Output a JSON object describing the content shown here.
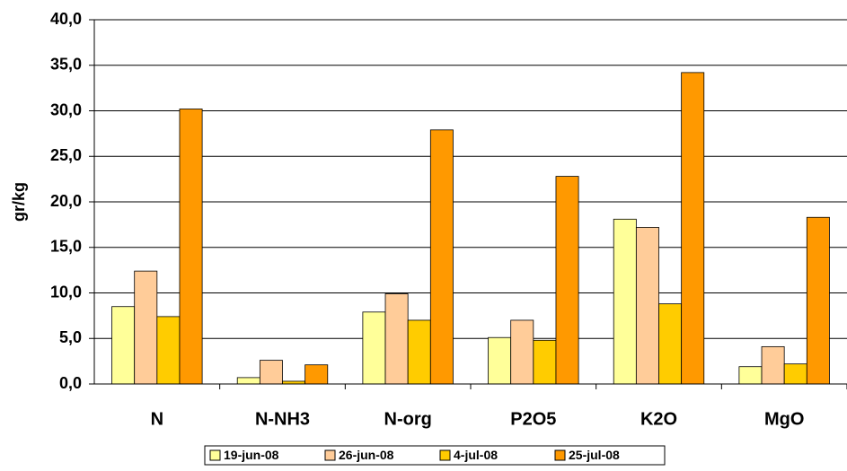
{
  "chart_data": {
    "type": "bar",
    "y_label": "gr/kg",
    "categories": [
      "N",
      "N-NH3",
      "N-org",
      "P2O5",
      "K2O",
      "MgO"
    ],
    "series": [
      {
        "name": "19-jun-08",
        "color": "#ffff99",
        "values": [
          8.5,
          0.7,
          7.9,
          5.1,
          18.1,
          1.9
        ]
      },
      {
        "name": "26-jun-08",
        "color": "#ffcc99",
        "values": [
          12.4,
          2.6,
          9.9,
          7.0,
          17.2,
          4.1
        ]
      },
      {
        "name": "4-jul-08",
        "color": "#ffcc00",
        "values": [
          7.4,
          0.3,
          7.0,
          4.8,
          8.8,
          2.2
        ]
      },
      {
        "name": "25-jul-08",
        "color": "#ff9900",
        "values": [
          30.2,
          2.1,
          27.9,
          22.8,
          34.2,
          18.3
        ]
      }
    ],
    "ylim": [
      0,
      40
    ],
    "yticks": [
      {
        "value": 0,
        "label": "0,0"
      },
      {
        "value": 5,
        "label": "5,0"
      },
      {
        "value": 10,
        "label": "10,0"
      },
      {
        "value": 15,
        "label": "15,0"
      },
      {
        "value": 20,
        "label": "20,0"
      },
      {
        "value": 25,
        "label": "25,0"
      },
      {
        "value": 30,
        "label": "30,0"
      },
      {
        "value": 35,
        "label": "35,0"
      },
      {
        "value": 40,
        "label": "40,0"
      }
    ],
    "grid": true
  }
}
